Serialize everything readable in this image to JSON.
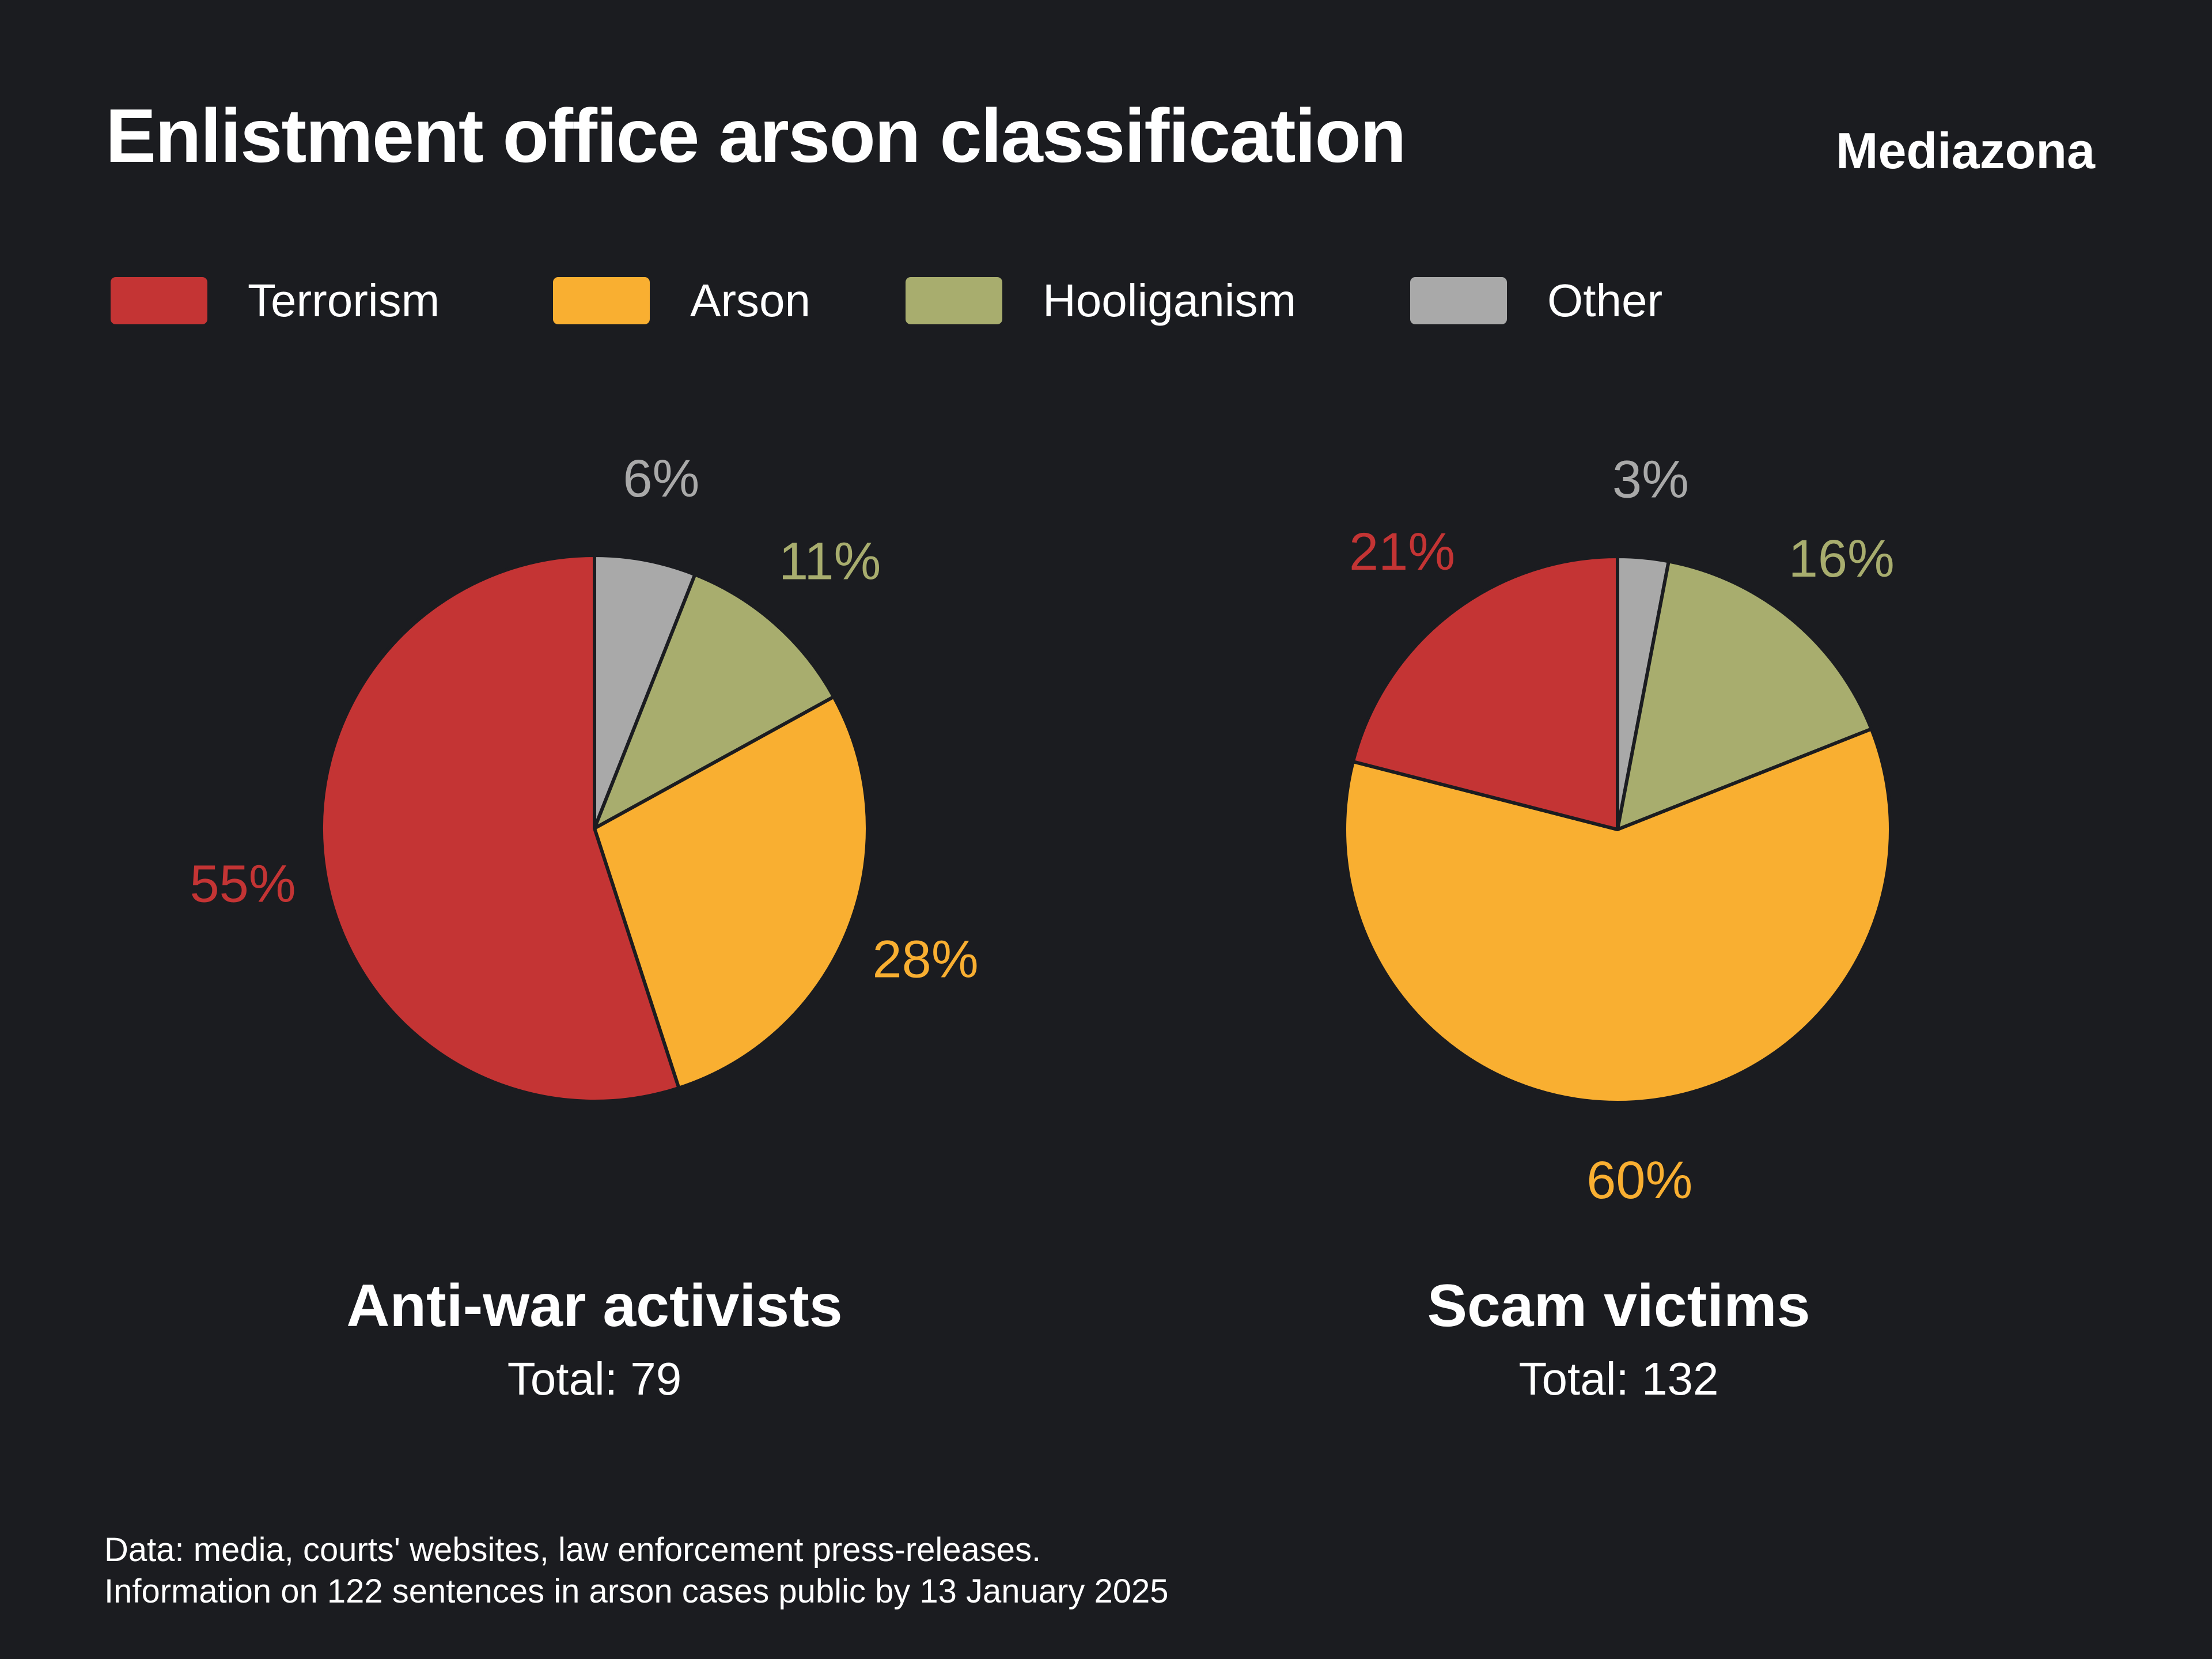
{
  "title": "Enlistment office arson classification",
  "brand": "Mediazona",
  "legend": [
    {
      "label": "Terrorism",
      "color": "#c43434"
    },
    {
      "label": "Arson",
      "color": "#f9af31"
    },
    {
      "label": "Hooliganism",
      "color": "#a8ad6e"
    },
    {
      "label": "Other",
      "color": "#a9a9a9"
    }
  ],
  "chart_data": [
    {
      "type": "pie",
      "title": "Anti-war activists",
      "subtitle": "Total: 79",
      "slices": [
        {
          "label": "Other",
          "value": 6,
          "text": "6%",
          "color": "#a9a9a9"
        },
        {
          "label": "Hooliganism",
          "value": 11,
          "text": "11%",
          "color": "#a8ad6e"
        },
        {
          "label": "Arson",
          "value": 28,
          "text": "28%",
          "color": "#f9af31"
        },
        {
          "label": "Terrorism",
          "value": 55,
          "text": "55%",
          "color": "#c43434"
        }
      ]
    },
    {
      "type": "pie",
      "title": "Scam victims",
      "subtitle": "Total: 132",
      "slices": [
        {
          "label": "Other",
          "value": 3,
          "text": "3%",
          "color": "#a9a9a9"
        },
        {
          "label": "Hooliganism",
          "value": 16,
          "text": "16%",
          "color": "#a8ad6e"
        },
        {
          "label": "Arson",
          "value": 60,
          "text": "60%",
          "color": "#f9af31"
        },
        {
          "label": "Terrorism",
          "value": 21,
          "text": "21%",
          "color": "#c43434"
        }
      ]
    }
  ],
  "source": {
    "line1": "Data: media, courts' websites, law enforcement press-releases.",
    "line2": "Information on 122 sentences in arson cases public by 13 January 2025"
  }
}
